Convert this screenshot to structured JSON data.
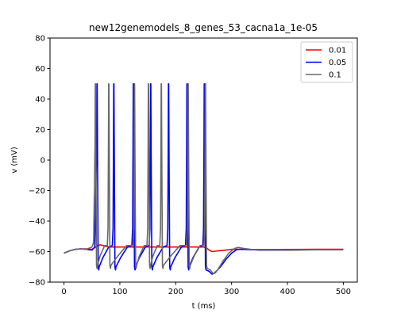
{
  "chart_data": {
    "type": "line",
    "title": "new12genemodels_8_genes_53_cacna1a_1e-05",
    "xlabel": "t (ms)",
    "ylabel": "v (mV)",
    "xlim": [
      -25,
      525
    ],
    "ylim": [
      -80,
      80
    ],
    "xticks": [
      0,
      100,
      200,
      300,
      400,
      500
    ],
    "yticks": [
      -80,
      -60,
      -40,
      -20,
      0,
      20,
      40,
      60,
      80
    ],
    "grid": false,
    "legend_position": "top-right",
    "series": [
      {
        "name": "0.01",
        "color": "#ff0000",
        "points": [
          [
            0,
            -61
          ],
          [
            10,
            -59.5
          ],
          [
            20,
            -58.5
          ],
          [
            30,
            -58.2
          ],
          [
            40,
            -58.2
          ],
          [
            50,
            -58.5
          ],
          [
            55,
            -57.5
          ],
          [
            60,
            -56
          ],
          [
            65,
            -55.5
          ],
          [
            70,
            -56
          ],
          [
            80,
            -57
          ],
          [
            90,
            -57
          ],
          [
            100,
            -57
          ],
          [
            150,
            -57
          ],
          [
            200,
            -57
          ],
          [
            240,
            -57
          ],
          [
            250,
            -57
          ],
          [
            255,
            -57.5
          ],
          [
            260,
            -59
          ],
          [
            265,
            -60
          ],
          [
            275,
            -59.5
          ],
          [
            290,
            -59
          ],
          [
            300,
            -58.5
          ],
          [
            330,
            -58.6
          ],
          [
            380,
            -58.6
          ],
          [
            450,
            -58.5
          ],
          [
            500,
            -58.5
          ]
        ]
      },
      {
        "name": "0.05",
        "color": "#0000ff",
        "spikes": [
          59,
          89,
          124,
          155,
          187,
          220,
          251
        ],
        "peak": 50,
        "trough": -72,
        "baseline": [
          [
            0,
            -61
          ],
          [
            10,
            -59.5
          ],
          [
            20,
            -58.5
          ],
          [
            30,
            -58.2
          ],
          [
            40,
            -58.5
          ],
          [
            50,
            -59
          ],
          [
            55,
            -57
          ]
        ],
        "tail": [
          [
            260,
            -73
          ],
          [
            265,
            -74.8
          ],
          [
            270,
            -74
          ],
          [
            280,
            -70
          ],
          [
            290,
            -65
          ],
          [
            300,
            -61
          ],
          [
            310,
            -58.5
          ],
          [
            320,
            -58.5
          ],
          [
            350,
            -59
          ],
          [
            400,
            -59
          ],
          [
            450,
            -58.8
          ],
          [
            500,
            -58.8
          ]
        ]
      },
      {
        "name": "0.1",
        "color": "#696969",
        "spikes": [
          56,
          80,
          126,
          151,
          174,
          222,
          253
        ],
        "peak": 50,
        "trough": -71,
        "baseline": [
          [
            0,
            -61
          ],
          [
            10,
            -59.5
          ],
          [
            20,
            -58.5
          ],
          [
            30,
            -58.2
          ],
          [
            40,
            -58.5
          ],
          [
            50,
            -57
          ],
          [
            53,
            -54
          ]
        ],
        "tail": [
          [
            262,
            -72
          ],
          [
            267,
            -74.5
          ],
          [
            275,
            -72
          ],
          [
            285,
            -66
          ],
          [
            295,
            -61
          ],
          [
            305,
            -58
          ],
          [
            312,
            -57.2
          ],
          [
            320,
            -57.8
          ],
          [
            340,
            -58.8
          ],
          [
            400,
            -59
          ],
          [
            450,
            -58.8
          ],
          [
            500,
            -58.8
          ]
        ]
      }
    ]
  }
}
